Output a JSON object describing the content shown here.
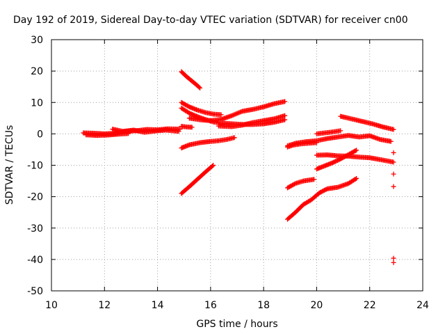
{
  "chart_data": {
    "type": "scatter",
    "title": "Day 192 of 2019, Sidereal Day-to-day VTEC variation (SDTVAR) for receiver cn00",
    "xlabel": "GPS time / hours",
    "ylabel": "SDTVAR / TECUs",
    "xlim": [
      10,
      24
    ],
    "ylim": [
      -50,
      30
    ],
    "xticks": [
      10,
      12,
      14,
      16,
      18,
      20,
      22,
      24
    ],
    "yticks": [
      30,
      20,
      10,
      0,
      -10,
      -20,
      -30,
      -40,
      -50
    ],
    "grid": true,
    "marker": "+",
    "color": "#ff0000",
    "series": [
      {
        "x": [
          11.2,
          11.6,
          12.0,
          12.4,
          12.8,
          13.2,
          13.6,
          14.0,
          14.4,
          14.85
        ],
        "y": [
          0.3,
          0.2,
          0.0,
          0.2,
          0.8,
          1.0,
          1.4,
          1.3,
          1.6,
          1.5
        ]
      },
      {
        "x": [
          12.3,
          12.7,
          13.1,
          13.5,
          13.9,
          14.3,
          14.8
        ],
        "y": [
          1.5,
          0.8,
          1.2,
          0.5,
          0.9,
          1.2,
          0.8
        ]
      },
      {
        "x": [
          11.3,
          11.7,
          12.1,
          12.5,
          12.9
        ],
        "y": [
          -0.3,
          -0.5,
          -0.4,
          -0.1,
          0.1
        ]
      },
      {
        "x": [
          14.9,
          15.1,
          15.3,
          15.5,
          15.6
        ],
        "y": [
          19.8,
          18.2,
          16.8,
          15.4,
          14.6
        ]
      },
      {
        "x": [
          14.9,
          15.2,
          15.5,
          15.8,
          16.1,
          16.4
        ],
        "y": [
          10.0,
          8.6,
          7.6,
          6.8,
          6.3,
          6.1
        ]
      },
      {
        "x": [
          14.9,
          15.2,
          15.5,
          15.8,
          16.1,
          16.4,
          16.8,
          17.2,
          17.6,
          18.0,
          18.4,
          18.8
        ],
        "y": [
          8.2,
          6.6,
          5.5,
          4.6,
          3.8,
          3.4,
          3.2,
          3.0,
          3.0,
          3.2,
          3.7,
          4.5
        ]
      },
      {
        "x": [
          15.2,
          15.6,
          16.0,
          16.4,
          16.8,
          17.2,
          17.6,
          18.0,
          18.4,
          18.8
        ],
        "y": [
          5.0,
          4.5,
          4.2,
          4.6,
          5.8,
          7.2,
          7.8,
          8.6,
          9.6,
          10.3
        ]
      },
      {
        "x": [
          16.3,
          16.8,
          17.2,
          17.6,
          18.0,
          18.4,
          18.8
        ],
        "y": [
          2.5,
          2.3,
          2.8,
          3.6,
          4.2,
          4.8,
          5.8
        ]
      },
      {
        "x": [
          14.9,
          15.1,
          15.3
        ],
        "y": [
          2.4,
          2.2,
          2.1
        ]
      },
      {
        "x": [
          14.9,
          15.2,
          15.6,
          16.0,
          16.3,
          16.6,
          16.9
        ],
        "y": [
          -4.5,
          -3.5,
          -2.8,
          -2.4,
          -2.2,
          -1.8,
          -1.2
        ]
      },
      {
        "x": [
          14.9,
          15.2,
          15.5,
          15.8,
          16.1
        ],
        "y": [
          -19.0,
          -16.8,
          -14.5,
          -12.2,
          -10.0
        ]
      },
      {
        "x": [
          18.9,
          19.2,
          19.6,
          20.0,
          20.4,
          20.8,
          21.2,
          21.6,
          22.0,
          22.4,
          22.8
        ],
        "y": [
          -3.8,
          -3.0,
          -2.5,
          -2.2,
          -1.5,
          -1.0,
          -0.5,
          -1.0,
          -0.6,
          -1.8,
          -2.4
        ]
      },
      {
        "x": [
          18.9,
          19.1,
          19.4,
          19.7,
          20.0
        ],
        "y": [
          -4.2,
          -3.6,
          -3.2,
          -3.0,
          -2.8
        ]
      },
      {
        "x": [
          20.0,
          20.3,
          20.6,
          20.9
        ],
        "y": [
          0.0,
          0.3,
          0.6,
          1.0
        ]
      },
      {
        "x": [
          20.9,
          21.3,
          21.7,
          22.1,
          22.5,
          22.9
        ],
        "y": [
          5.6,
          4.8,
          4.0,
          3.2,
          2.2,
          1.4
        ]
      },
      {
        "x": [
          20.0,
          20.4,
          20.8,
          21.2,
          21.6,
          22.0,
          22.4,
          22.9
        ],
        "y": [
          -6.8,
          -6.7,
          -7.0,
          -7.1,
          -7.4,
          -7.6,
          -8.2,
          -9.0
        ]
      },
      {
        "x": [
          20.0,
          20.3,
          20.6,
          20.9,
          21.2,
          21.5
        ],
        "y": [
          -11.2,
          -10.2,
          -9.2,
          -8.0,
          -6.6,
          -5.2
        ]
      },
      {
        "x": [
          18.9,
          19.2,
          19.5,
          19.9
        ],
        "y": [
          -17.2,
          -15.8,
          -15.0,
          -14.5
        ]
      },
      {
        "x": [
          18.9,
          19.2,
          19.5,
          19.8,
          20.1,
          20.4,
          20.8,
          21.2,
          21.5
        ],
        "y": [
          -27.2,
          -25.0,
          -22.5,
          -21.0,
          -18.8,
          -17.5,
          -17.0,
          -15.8,
          -14.2
        ]
      },
      {
        "x": [
          22.9,
          22.9,
          22.9,
          22.9,
          22.9
        ],
        "y": [
          -6.0,
          -12.8,
          -16.8,
          -39.6,
          -41.0
        ]
      }
    ]
  }
}
